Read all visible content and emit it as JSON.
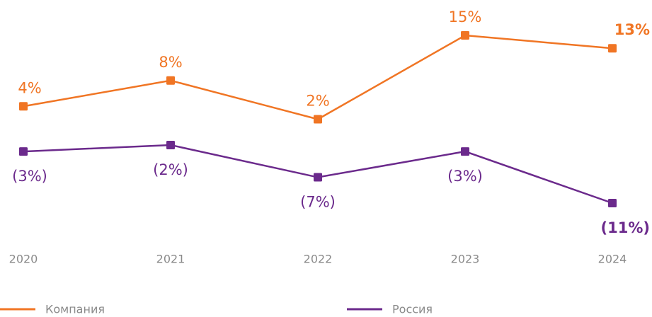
{
  "chart_data": {
    "type": "line",
    "categories": [
      "2020",
      "2021",
      "2022",
      "2023",
      "2024"
    ],
    "series": [
      {
        "name": "Компания",
        "color": "#f07524",
        "values": [
          4,
          8,
          2,
          15,
          13
        ],
        "value_labels": [
          "4%",
          "8%",
          "2%",
          "15%",
          "13%"
        ]
      },
      {
        "name": "Россия",
        "color": "#6b2a8c",
        "values": [
          -3,
          -2,
          -7,
          -3,
          -11
        ],
        "value_labels": [
          "(3%)",
          "(2%)",
          "(7%)",
          "(3%)",
          "(11%)"
        ]
      }
    ]
  }
}
